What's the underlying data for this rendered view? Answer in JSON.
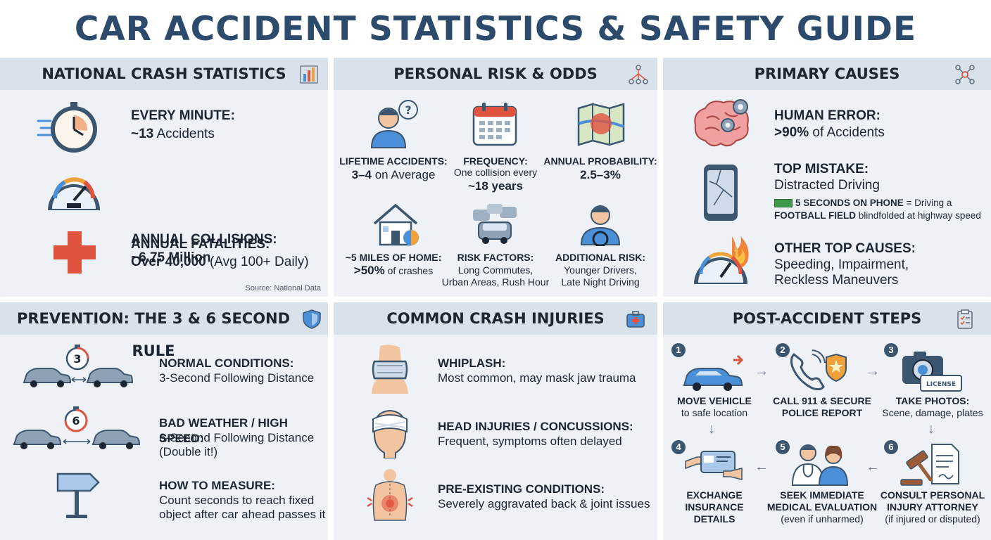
{
  "title": "CAR ACCIDENT STATISTICS & SAFETY GUIDE",
  "colors": {
    "title": "#2c4a6b",
    "panel_bg": "#eef2f7",
    "header_bg": "#d9e1ea",
    "accent_red": "#e0533f",
    "accent_blue": "#4a90d9",
    "step_badge": "#3d5670"
  },
  "national": {
    "header": "NATIONAL CRASH STATISTICS",
    "header_icon": "bar-chart-icon",
    "items": [
      {
        "icon": "stopwatch-icon",
        "label": "EVERY MINUTE:",
        "value_strong": "~13",
        "value_rest": " Accidents"
      },
      {
        "icon": "speedometer-icon",
        "label": "ANNUAL COLLISIONS:",
        "value_strong": "~6.75 Million",
        "value_rest": ""
      },
      {
        "icon": "medical-cross-icon",
        "label": "ANNUAL FATALITIES:",
        "value_strong": "Over 40,000",
        "value_rest": " (Avg 100+ Daily)"
      }
    ],
    "source": "Source: National Data"
  },
  "personal": {
    "header": "PERSONAL RISK & ODDS",
    "header_icon": "network-icon",
    "cells": [
      {
        "icon": "person-question-icon",
        "label": "LIFETIME ACCIDENTS:",
        "value_strong": "3–4",
        "value_rest": " on Average",
        "small": ""
      },
      {
        "icon": "calendar-icon",
        "label": "FREQUENCY:",
        "small": "One collision every",
        "value_strong": "~18 years",
        "value_rest": ""
      },
      {
        "icon": "map-icon",
        "label": "ANNUAL PROBABILITY:",
        "value_strong": "2.5–3%",
        "value_rest": "",
        "small": ""
      },
      {
        "icon": "house-icon",
        "label": "~5 MILES OF HOME:",
        "value_strong": ">50%",
        "value_rest": " of crashes",
        "small": ""
      },
      {
        "icon": "traffic-icon",
        "label": "RISK FACTORS:",
        "line1": "Long Commutes,",
        "line2": "Urban Areas, Rush Hour"
      },
      {
        "icon": "driver-icon",
        "label": "ADDITIONAL RISK:",
        "line1": "Younger Drivers,",
        "line2": "Late Night Driving"
      }
    ]
  },
  "causes": {
    "header": "PRIMARY CAUSES",
    "header_icon": "nodes-icon",
    "items": [
      {
        "icon": "brain-gears-icon",
        "label": "HUMAN ERROR:",
        "value_strong": ">90%",
        "value_rest": " of Accidents"
      },
      {
        "icon": "cracked-phone-icon",
        "label": "TOP MISTAKE:",
        "value": "Distracted Driving",
        "note_strong1": "5 SECONDS ON PHONE",
        "note_rest1": " = Driving a",
        "note_strong2": "FOOTBALL FIELD",
        "note_rest2": " blindfolded at highway speed"
      },
      {
        "icon": "speedometer-fire-icon",
        "label": "OTHER TOP CAUSES:",
        "line1": "Speeding, Impairment,",
        "line2": "Reckless Maneuvers"
      }
    ]
  },
  "prevention": {
    "header": "PREVENTION: THE 3 & 6 SECOND RULE",
    "header_icon": "shield-icon",
    "items": [
      {
        "icon": "cars-3-second-icon",
        "timer": "3",
        "label": "NORMAL CONDITIONS:",
        "line1": "3-Second Following Distance",
        "line2": ""
      },
      {
        "icon": "cars-6-second-icon",
        "timer": "6",
        "label": "BAD WEATHER / HIGH SPEED:",
        "line1": "6-Second Following Distance",
        "line2": "(Double it!)"
      },
      {
        "icon": "signpost-icon",
        "label": "HOW TO MEASURE:",
        "line1": "Count seconds to reach fixed",
        "line2": "object after car ahead passes it"
      }
    ]
  },
  "injuries": {
    "header": "COMMON CRASH INJURIES",
    "header_icon": "first-aid-kit-icon",
    "items": [
      {
        "icon": "neck-brace-icon",
        "label": "WHIPLASH:",
        "value": "Most common, may mask jaw trauma"
      },
      {
        "icon": "bandaged-head-icon",
        "label": "HEAD INJURIES / CONCUSSIONS:",
        "value": "Frequent, symptoms often delayed"
      },
      {
        "icon": "back-pain-icon",
        "label": "PRE-EXISTING CONDITIONS:",
        "value": "Severely aggravated back & joint issues"
      }
    ]
  },
  "steps": {
    "header": "POST-ACCIDENT STEPS",
    "header_icon": "clipboard-icon",
    "items": [
      {
        "n": "1",
        "icon": "car-move-icon",
        "label": "MOVE VEHICLE",
        "sub": "to safe location",
        "sub2": ""
      },
      {
        "n": "2",
        "icon": "phone-badge-icon",
        "label": "CALL 911 & SECURE",
        "sub": "POLICE REPORT",
        "sub2": ""
      },
      {
        "n": "3",
        "icon": "camera-license-icon",
        "badge": "LICENSE",
        "label": "TAKE PHOTOS:",
        "sub": "Scene, damage, plates",
        "sub2": ""
      },
      {
        "n": "4",
        "icon": "card-exchange-icon",
        "label": "EXCHANGE",
        "sub": "INSURANCE",
        "sub2": "DETAILS"
      },
      {
        "n": "5",
        "icon": "doctor-patient-icon",
        "label": "SEEK IMMEDIATE",
        "sub": "MEDICAL EVALUATION",
        "sub2": "(even if unharmed)"
      },
      {
        "n": "6",
        "icon": "gavel-document-icon",
        "label": "CONSULT PERSONAL",
        "sub": "INJURY ATTORNEY",
        "sub2": "(if injured or disputed)"
      }
    ]
  }
}
